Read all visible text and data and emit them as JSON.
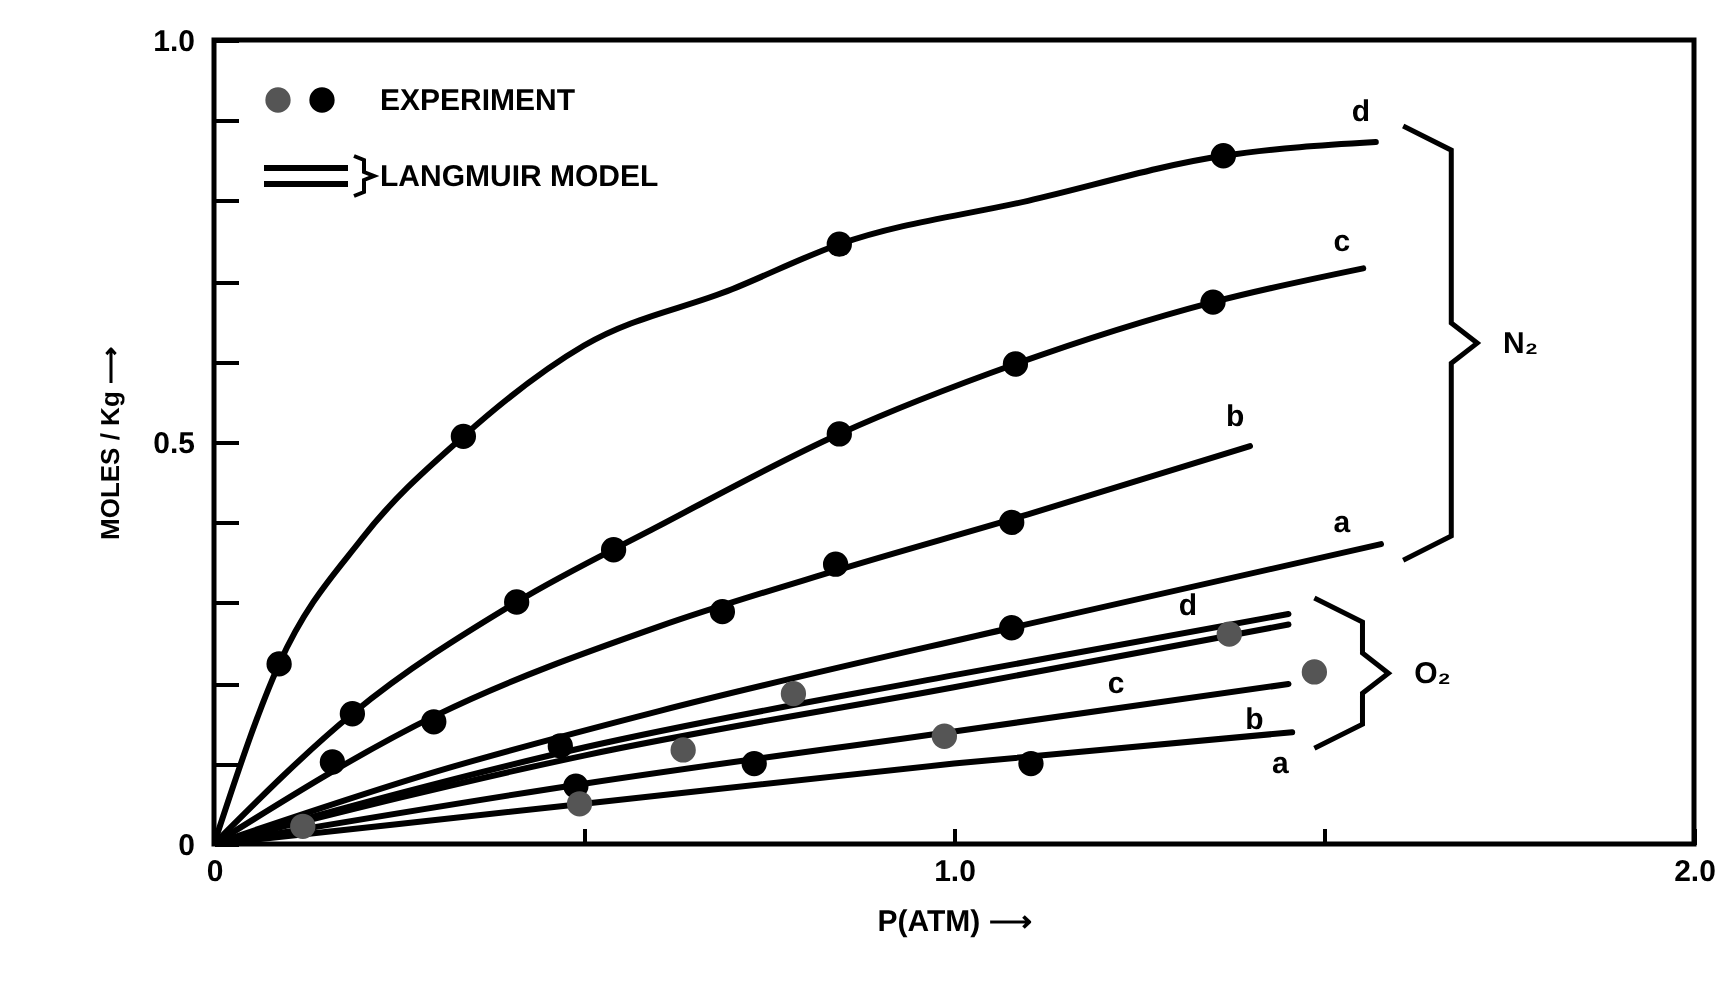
{
  "chart_data": {
    "type": "line",
    "xlabel": "P(ATM) ⟶",
    "ylabel": "MOLES / Kg ⟶",
    "xlim": [
      0,
      2
    ],
    "ylim": [
      0,
      1
    ],
    "xticks": [
      0,
      {
        "value": 0.5,
        "label": null
      },
      {
        "value": 1,
        "label": "1.0"
      },
      {
        "value": 1.5,
        "label": null
      },
      {
        "value": 2,
        "label": "2.0"
      }
    ],
    "yticks": [
      0,
      {
        "value": 0.1,
        "label": null
      },
      {
        "value": 0.2,
        "label": null
      },
      {
        "value": 0.3,
        "label": null
      },
      {
        "value": 0.4,
        "label": null
      },
      0.5,
      {
        "value": 0.6,
        "label": null
      },
      {
        "value": 0.7,
        "label": null
      },
      {
        "value": 0.8,
        "label": null
      },
      {
        "value": 0.9,
        "label": null
      },
      {
        "value": 1,
        "label": "1.0"
      }
    ],
    "legend": "top left",
    "series": [
      {
        "name": "LANGMUIR MODEL",
        "color": "#000000",
        "x": [
          0,
          0.088,
          0.2,
          0.337,
          0.5,
          0.7,
          0.845,
          1.1,
          1.364,
          1.57
        ],
        "values": [
          0,
          0.224,
          0.38,
          0.507,
          0.62,
          0.69,
          0.746,
          0.8,
          0.856,
          0.873
        ]
      },
      {
        "color": "#000000",
        "x": [
          0,
          0.187,
          0.409,
          0.6,
          0.845,
          1.083,
          1.35,
          1.553
        ],
        "values": [
          0,
          0.162,
          0.301,
          0.395,
          0.51,
          0.597,
          0.674,
          0.716
        ]
      },
      {
        "color": "#000000",
        "x": [
          0,
          0.3,
          0.6,
          0.84,
          1.1,
          1.4
        ],
        "values": [
          0,
          0.16,
          0.27,
          0.34,
          0.41,
          0.495
        ]
      },
      {
        "color": "#000000",
        "x": [
          0,
          0.3,
          0.6,
          1.078,
          1.577
        ],
        "values": [
          0,
          0.09,
          0.165,
          0.269,
          0.373
        ]
      },
      {
        "color": "#000000",
        "x": [
          0,
          0.5,
          1.0,
          1.452
        ],
        "values": [
          0,
          0.12,
          0.21,
          0.286
        ]
      },
      {
        "color": "#000000",
        "x": [
          0,
          0.5,
          1.0,
          1.452
        ],
        "values": [
          0,
          0.11,
          0.195,
          0.273
        ]
      },
      {
        "color": "#000000",
        "x": [
          0,
          0.5,
          1.0,
          1.452
        ],
        "values": [
          0,
          0.075,
          0.14,
          0.199
        ]
      },
      {
        "color": "#000000",
        "x": [
          0,
          0.5,
          1.0,
          1.457
        ],
        "values": [
          0,
          0.05,
          0.1,
          0.139
        ]
      },
      {
        "name": "EXPERIMENT",
        "type": "scatter",
        "marker": "circle",
        "x": [
          0.088,
          0.337,
          0.845,
          1.364,
          0.187,
          0.409,
          0.54,
          0.845,
          1.083,
          1.35,
          0.16,
          0.297,
          0.687,
          0.84,
          1.078,
          1.078,
          0.468,
          0.12,
          0.489,
          0.494,
          0.634,
          0.73,
          0.783,
          0.987,
          1.104,
          1.372,
          1.487
        ],
        "values": [
          0.224,
          0.507,
          0.746,
          0.856,
          0.162,
          0.301,
          0.366,
          0.51,
          0.597,
          0.674,
          0.102,
          0.152,
          0.289,
          0.348,
          0.4,
          0.269,
          0.122,
          0.022,
          0.072,
          0.05,
          0.117,
          0.1,
          0.187,
          0.134,
          0.1,
          0.261,
          0.214
        ],
        "colors": [
          "#000000",
          "#000000",
          "#000000",
          "#000000",
          "#000000",
          "#000000",
          "#000000",
          "#000000",
          "#000000",
          "#000000",
          "#000000",
          "#000000",
          "#000000",
          "#000000",
          "#000000",
          "#000000",
          "#000000",
          "#555555",
          "#000000",
          "#555555",
          "#555555",
          "#000000",
          "#555555",
          "#555555",
          "#000000",
          "#555555",
          "#555555"
        ]
      }
    ],
    "annotations": [
      {
        "text": "d",
        "x": 1.55,
        "y": 0.872
      },
      {
        "text": "c",
        "x": 1.524,
        "y": 0.71
      },
      {
        "text": "b",
        "x": 1.38,
        "y": 0.49
      },
      {
        "text": "a",
        "x": 1.524,
        "y": 0.358
      },
      {
        "text": "d",
        "x": 1.316,
        "y": 0.263
      },
      {
        "text": "c",
        "x": 1.219,
        "y": 0.233
      },
      {
        "text": "b",
        "x": 1.406,
        "y": 0.193
      },
      {
        "text": "a",
        "x": 1.441,
        "y": 0.138
      },
      "N₂",
      "O₂"
    ]
  }
}
